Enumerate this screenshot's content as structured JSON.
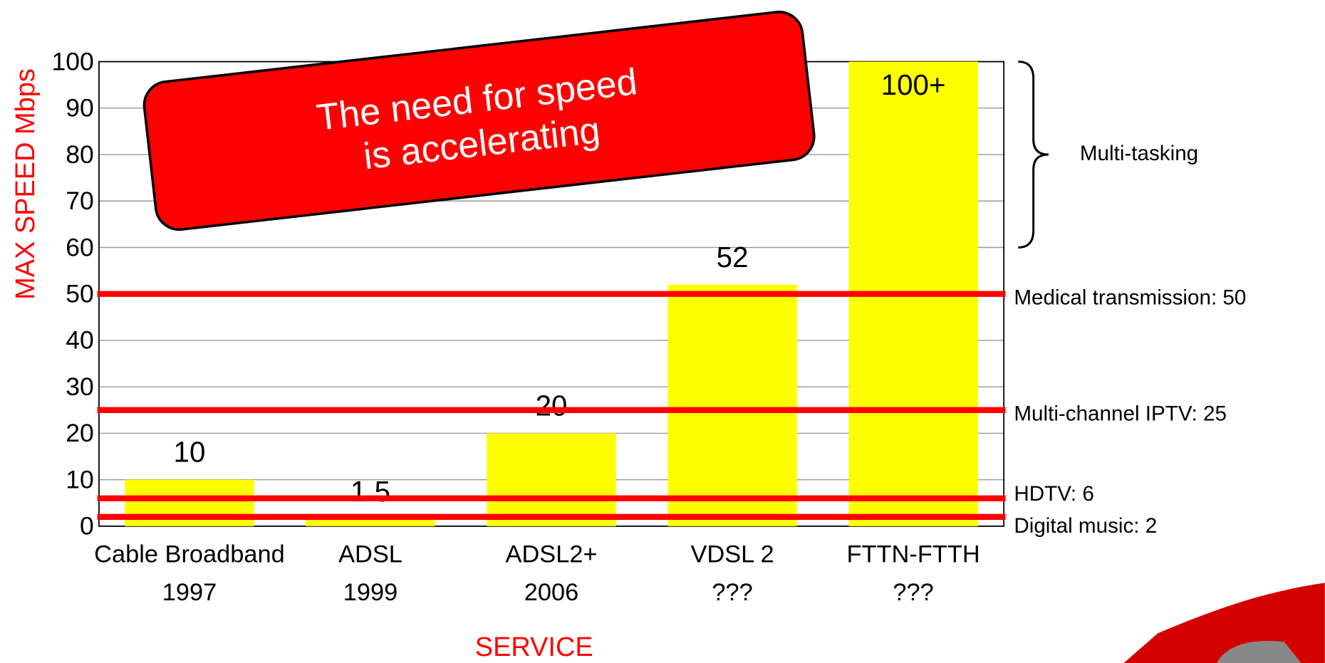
{
  "chart_data": {
    "type": "bar",
    "y_label": "MAX SPEED Mbps",
    "x_label": "SERVICE",
    "callout": [
      "The need for speed",
      "is accelerating"
    ],
    "categories": [
      [
        "Cable Broadband",
        "1997"
      ],
      [
        "ADSL",
        "1999"
      ],
      [
        "ADSL2+",
        "2006"
      ],
      [
        "VDSL 2",
        "???"
      ],
      [
        "FTTN-FTTH",
        "???"
      ]
    ],
    "values": [
      10,
      1.5,
      20,
      52,
      100
    ],
    "value_labels": [
      "10",
      "1.5",
      "20",
      "52",
      "100+"
    ],
    "color": "#ffff00",
    "ylim": [
      0,
      100
    ],
    "yticks": [
      0,
      10,
      20,
      30,
      40,
      50,
      60,
      70,
      80,
      90,
      100
    ],
    "grid": true,
    "reference_lines": [
      {
        "value": 50,
        "label": "Medical transmission: 50"
      },
      {
        "value": 25,
        "label": "Multi-channel IPTV: 25"
      },
      {
        "value": 6,
        "label": "HDTV: 6"
      },
      {
        "value": 2,
        "label": "Digital music: 2"
      }
    ],
    "reference_color": "#ff0000",
    "brace": {
      "from": 60,
      "to": 100,
      "label": "Multi-tasking"
    }
  }
}
